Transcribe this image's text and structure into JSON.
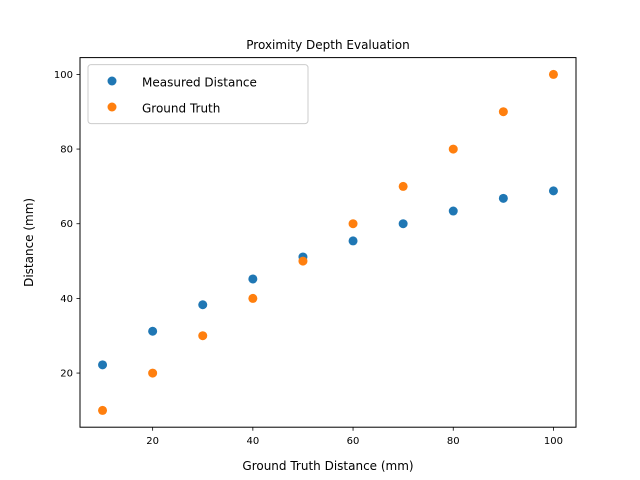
{
  "chart_data": {
    "type": "scatter",
    "title": "Proximity Depth Evaluation",
    "xlabel": "Ground Truth Distance (mm)",
    "ylabel": "Distance (mm)",
    "xlim": [
      5.5,
      104.5
    ],
    "ylim": [
      5.5,
      104.5
    ],
    "xticks": [
      20,
      40,
      60,
      80,
      100
    ],
    "yticks": [
      20,
      40,
      60,
      80,
      100
    ],
    "grid": false,
    "legend_position": "top-left",
    "x": [
      10,
      20,
      30,
      40,
      50,
      60,
      70,
      80,
      90,
      100
    ],
    "series": [
      {
        "name": "Measured Distance",
        "color": "#1f77b4",
        "values": [
          22.2,
          31.2,
          38.3,
          45.2,
          51.1,
          55.4,
          60.0,
          63.4,
          66.8,
          68.8
        ]
      },
      {
        "name": "Ground Truth",
        "color": "#ff7f0e",
        "values": [
          10,
          20,
          30,
          40,
          50,
          60,
          70,
          80,
          90,
          100
        ]
      }
    ]
  }
}
